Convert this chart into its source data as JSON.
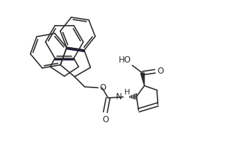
{
  "bg_color": "#ffffff",
  "line_color": "#2a2a2a",
  "line_width": 1.2,
  "figsize": [
    3.34,
    2.19
  ],
  "dpi": 100,
  "xlim": [
    0,
    10
  ],
  "ylim": [
    0,
    6.56
  ]
}
